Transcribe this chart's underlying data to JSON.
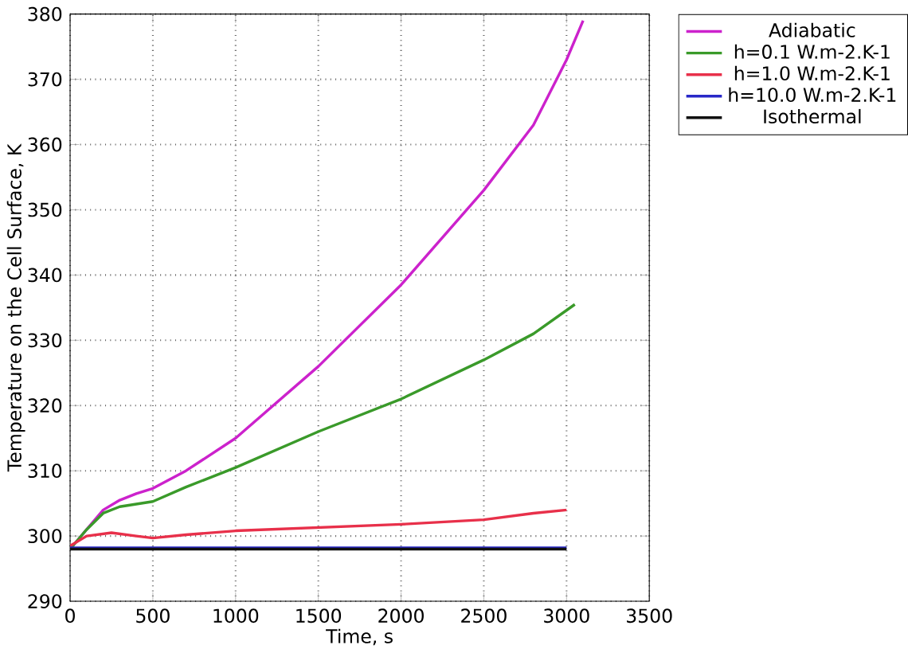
{
  "chart_data": {
    "type": "line",
    "xlabel": "Time, s",
    "ylabel": "Temperature on the Cell Surface, K",
    "xlim": [
      0,
      3500
    ],
    "ylim": [
      290,
      380
    ],
    "xticks": [
      0,
      500,
      1000,
      1500,
      2000,
      2500,
      3000,
      3500
    ],
    "yticks": [
      290,
      300,
      310,
      320,
      330,
      340,
      350,
      360,
      370,
      380
    ],
    "grid": true,
    "legend": "top right",
    "line_style": "solid",
    "marker": "none",
    "series": [
      {
        "name": "Adiabatic",
        "color": "#cc22cc",
        "x": [
          0,
          100,
          200,
          300,
          400,
          500,
          700,
          1000,
          1500,
          2000,
          2500,
          2800,
          3000,
          3100
        ],
        "values": [
          298,
          301,
          304,
          305.5,
          306.5,
          307.3,
          310,
          315,
          326,
          338.5,
          353,
          363,
          373,
          379
        ]
      },
      {
        "name": "h=0.1 W.m-2.K-1",
        "color": "#3a9a2a",
        "x": [
          0,
          100,
          200,
          300,
          500,
          700,
          1000,
          1500,
          2000,
          2500,
          2800,
          3050
        ],
        "values": [
          298,
          301,
          303.5,
          304.5,
          305.3,
          307.5,
          310.5,
          316,
          321,
          327,
          331,
          335.5
        ]
      },
      {
        "name": "h=1.0 W.m-2.K-1",
        "color": "#e8304a",
        "x": [
          0,
          100,
          250,
          400,
          500,
          700,
          1000,
          1500,
          2000,
          2500,
          2800,
          3000
        ],
        "values": [
          298.5,
          300,
          300.5,
          300,
          299.7,
          300.2,
          300.8,
          301.3,
          301.8,
          302.5,
          303.5,
          304
        ]
      },
      {
        "name": "h=10.0 W.m-2.K-1",
        "color": "#2828c8",
        "x": [
          0,
          3000
        ],
        "values": [
          298.2,
          298.2
        ]
      },
      {
        "name": "Isothermal",
        "color": "#101010",
        "x": [
          0,
          3000
        ],
        "values": [
          298,
          298
        ]
      }
    ]
  }
}
